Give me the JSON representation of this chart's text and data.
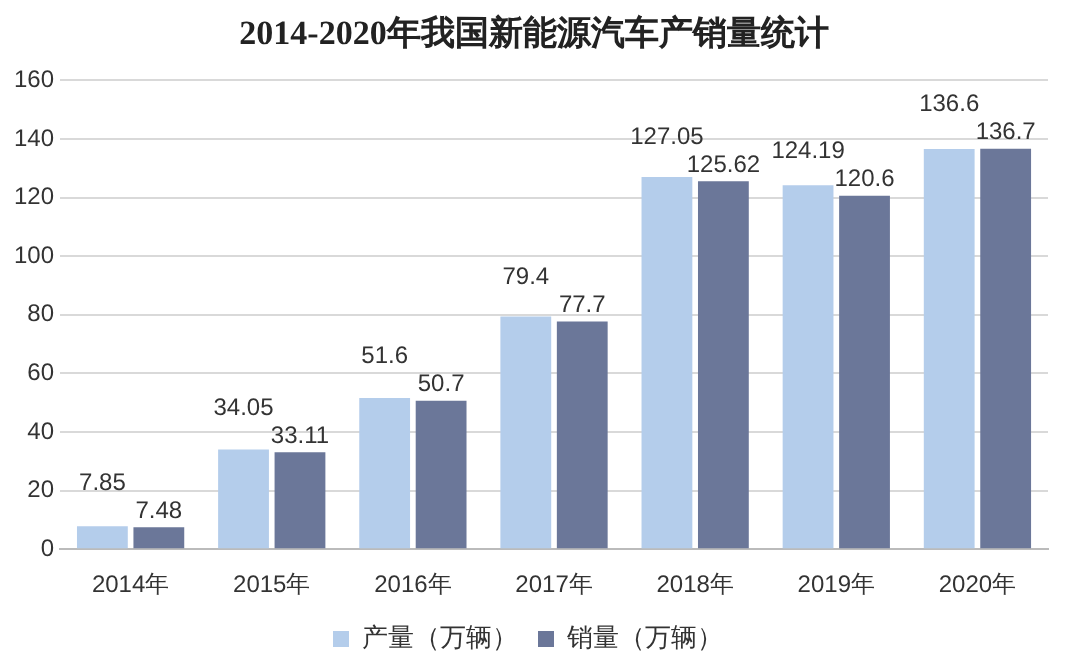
{
  "chart_data": {
    "type": "bar",
    "title": "2014-2020年我国新能源汽车产销量统计",
    "categories": [
      "2014年",
      "2015年",
      "2016年",
      "2017年",
      "2018年",
      "2019年",
      "2020年"
    ],
    "series": [
      {
        "name": "产量（万辆）",
        "color": "#b4cdeb",
        "values": [
          7.85,
          34.05,
          51.6,
          79.4,
          127.05,
          124.19,
          136.6
        ]
      },
      {
        "name": "销量（万辆）",
        "color": "#6b7799",
        "values": [
          7.48,
          33.11,
          50.7,
          77.7,
          125.62,
          120.6,
          136.7
        ]
      }
    ],
    "ylim": [
      0,
      160
    ],
    "yticks": [
      0,
      20,
      40,
      60,
      80,
      100,
      120,
      140,
      160
    ],
    "grid": "y",
    "legend": "bottom",
    "data_labels": true
  }
}
